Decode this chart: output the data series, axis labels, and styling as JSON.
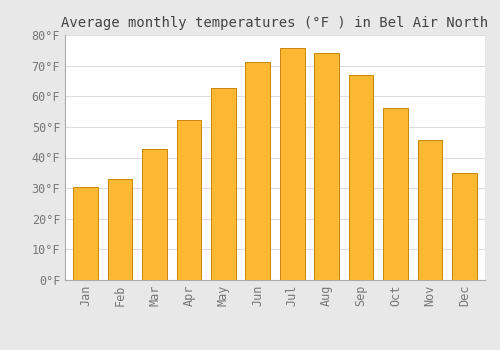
{
  "months": [
    "Jan",
    "Feb",
    "Mar",
    "Apr",
    "May",
    "Jun",
    "Jul",
    "Aug",
    "Sep",
    "Oct",
    "Nov",
    "Dec"
  ],
  "values": [
    30.4,
    33.1,
    42.8,
    52.2,
    62.8,
    71.2,
    75.7,
    74.1,
    67.0,
    56.1,
    45.7,
    35.1
  ],
  "bar_color_face": "#FDB833",
  "bar_color_edge": "#C8860A",
  "title": "Average monthly temperatures (°F ) in Bel Air North",
  "ylim": [
    0,
    80
  ],
  "ytick_step": 10,
  "background_color": "#e8e8e8",
  "plot_bg_color": "#ffffff",
  "grid_color": "#dddddd",
  "title_fontsize": 10,
  "tick_fontsize": 8.5,
  "font_family": "monospace"
}
